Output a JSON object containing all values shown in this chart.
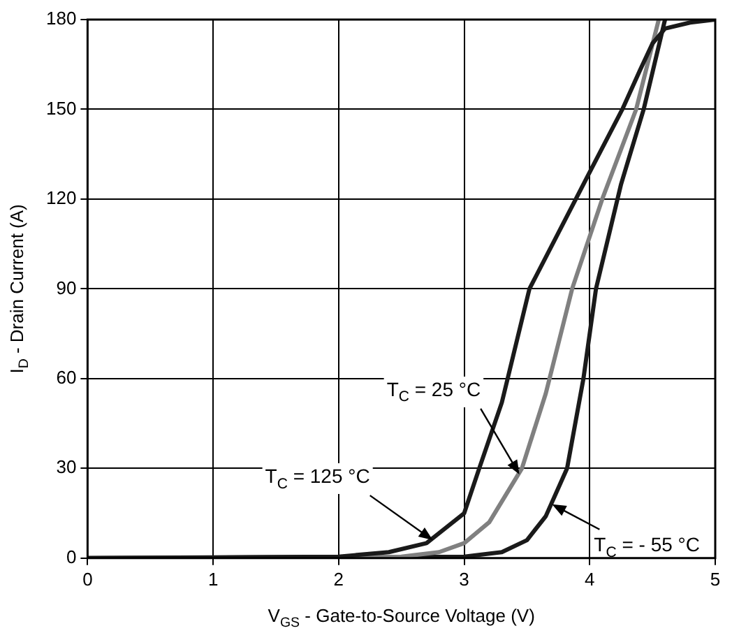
{
  "chart_data": {
    "type": "line",
    "xlabel": "V$_{GS}$ - Gate-to-Source Voltage (V)",
    "ylabel": "I$_{D}$ - Drain Current (A)",
    "xlim": [
      0,
      5
    ],
    "xticks": [
      0,
      1,
      2,
      3,
      4,
      5
    ],
    "ylim": [
      0,
      180
    ],
    "yticks": [
      0,
      30,
      60,
      90,
      120,
      150,
      180
    ],
    "grid": true,
    "marker": "none",
    "line_style": "solid",
    "series": [
      {
        "color": "#1a1a1a",
        "x": [
          0,
          2,
          2.4,
          2.7,
          3,
          3.12,
          3.3,
          3.52,
          4,
          4.26,
          4.4,
          4.5,
          4.6,
          4.8,
          5
        ],
        "values": [
          0,
          0.5,
          2,
          5,
          15,
          30,
          52,
          90,
          129,
          150,
          163,
          172,
          177,
          179,
          180
        ]
      },
      {
        "color": "#808080",
        "x": [
          0,
          2.5,
          2.8,
          3,
          3.2,
          3.46,
          3.65,
          3.86,
          4.1,
          4.37,
          4.55
        ],
        "values": [
          0,
          0.5,
          2,
          5,
          12,
          30,
          55,
          90,
          120,
          150,
          180
        ]
      },
      {
        "color": "#1a1a1a",
        "x": [
          0,
          3,
          3.3,
          3.5,
          3.65,
          3.82,
          3.95,
          4.05,
          4.25,
          4.43,
          4.6
        ],
        "values": [
          0,
          0.5,
          2,
          6,
          14,
          30,
          60,
          90,
          125,
          150,
          180
        ]
      }
    ],
    "annotations": [
      {
        "text": "T$_{C}$ = 25 °C",
        "x": 3.44,
        "y": 28
      },
      {
        "text": "T$_{C}$ = 125 °C",
        "x": 2.75,
        "y": 6
      },
      {
        "text": "T$_{C}$ = - 55 °C",
        "x": 3.7,
        "y": 18
      }
    ]
  }
}
